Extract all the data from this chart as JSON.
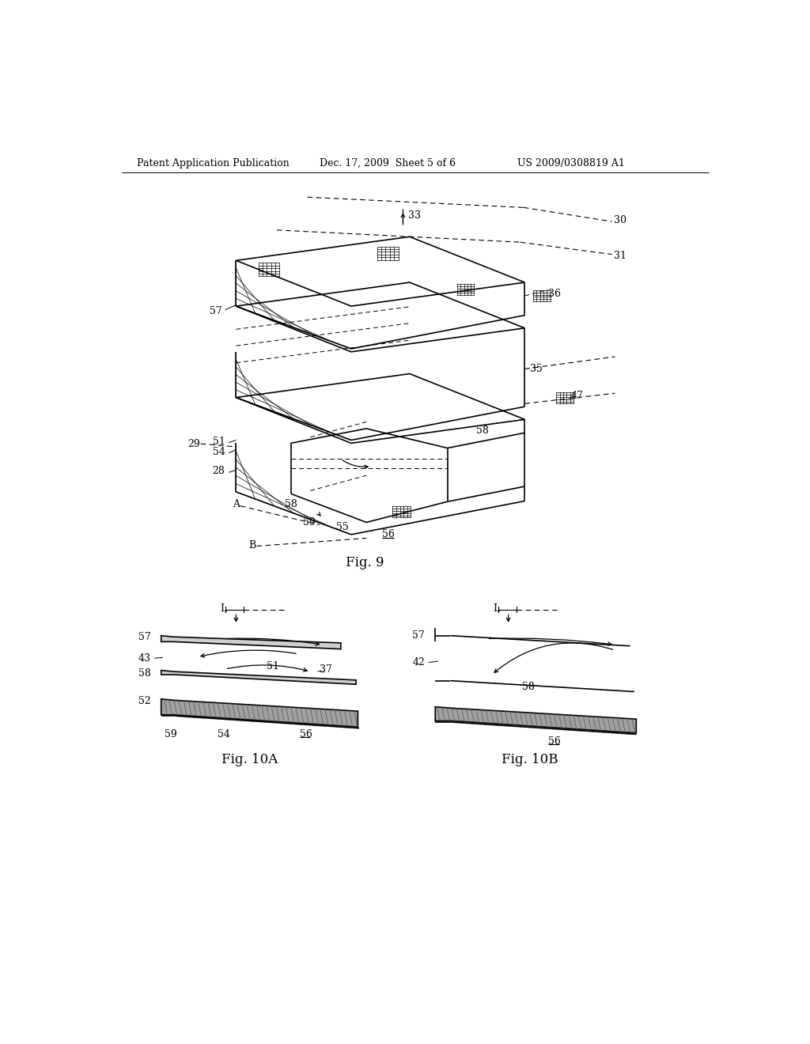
{
  "bg_color": "#ffffff",
  "header_left": "Patent Application Publication",
  "header_mid": "Dec. 17, 2009  Sheet 5 of 6",
  "header_right": "US 2009/0308819 A1",
  "fig9_caption": "Fig. 9",
  "fig10a_caption": "Fig. 10A",
  "fig10b_caption": "Fig. 10B",
  "lw": 1.2,
  "dlw": 0.8,
  "fs": 9,
  "cap_fs": 12
}
